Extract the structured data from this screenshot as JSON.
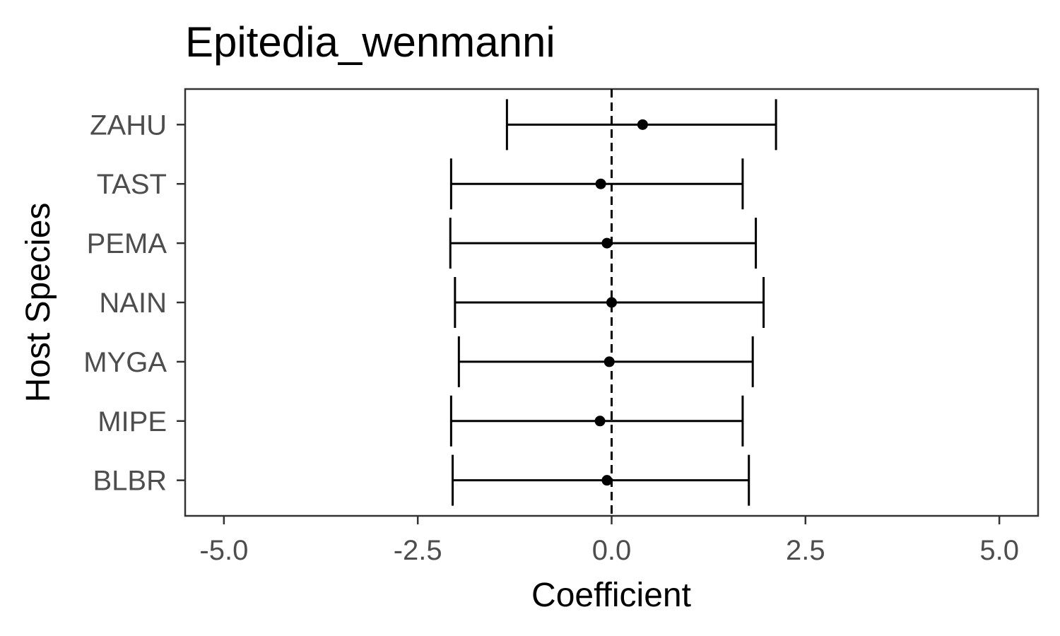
{
  "chart_data": {
    "type": "scatter",
    "subtype": "coefficient-errorbar",
    "title": "Epitedia_wenmanni",
    "xlabel": "Coefficient",
    "ylabel": "Host Species",
    "xlim": [
      -5.5,
      5.5
    ],
    "x_ticks": [
      -5.0,
      -2.5,
      0.0,
      2.5,
      5.0
    ],
    "x_tick_labels": [
      "-5.0",
      "-2.5",
      "0.0",
      "2.5",
      "5.0"
    ],
    "reference_line": {
      "x": 0,
      "style": "dashed"
    },
    "grid": false,
    "legend": "none",
    "categories": [
      "BLBR",
      "MIPE",
      "MYGA",
      "NAIN",
      "PEMA",
      "TAST",
      "ZAHU"
    ],
    "estimates": [
      -0.06,
      -0.15,
      -0.03,
      0.0,
      -0.06,
      -0.14,
      0.4
    ],
    "lower": [
      -2.05,
      -2.07,
      -1.97,
      -2.02,
      -2.08,
      -2.07,
      -1.35
    ],
    "upper": [
      1.77,
      1.69,
      1.82,
      1.96,
      1.86,
      1.69,
      2.12
    ],
    "colors": {
      "point": "#000000",
      "axis": "#333333",
      "tick_label": "#4d4d4d"
    }
  }
}
